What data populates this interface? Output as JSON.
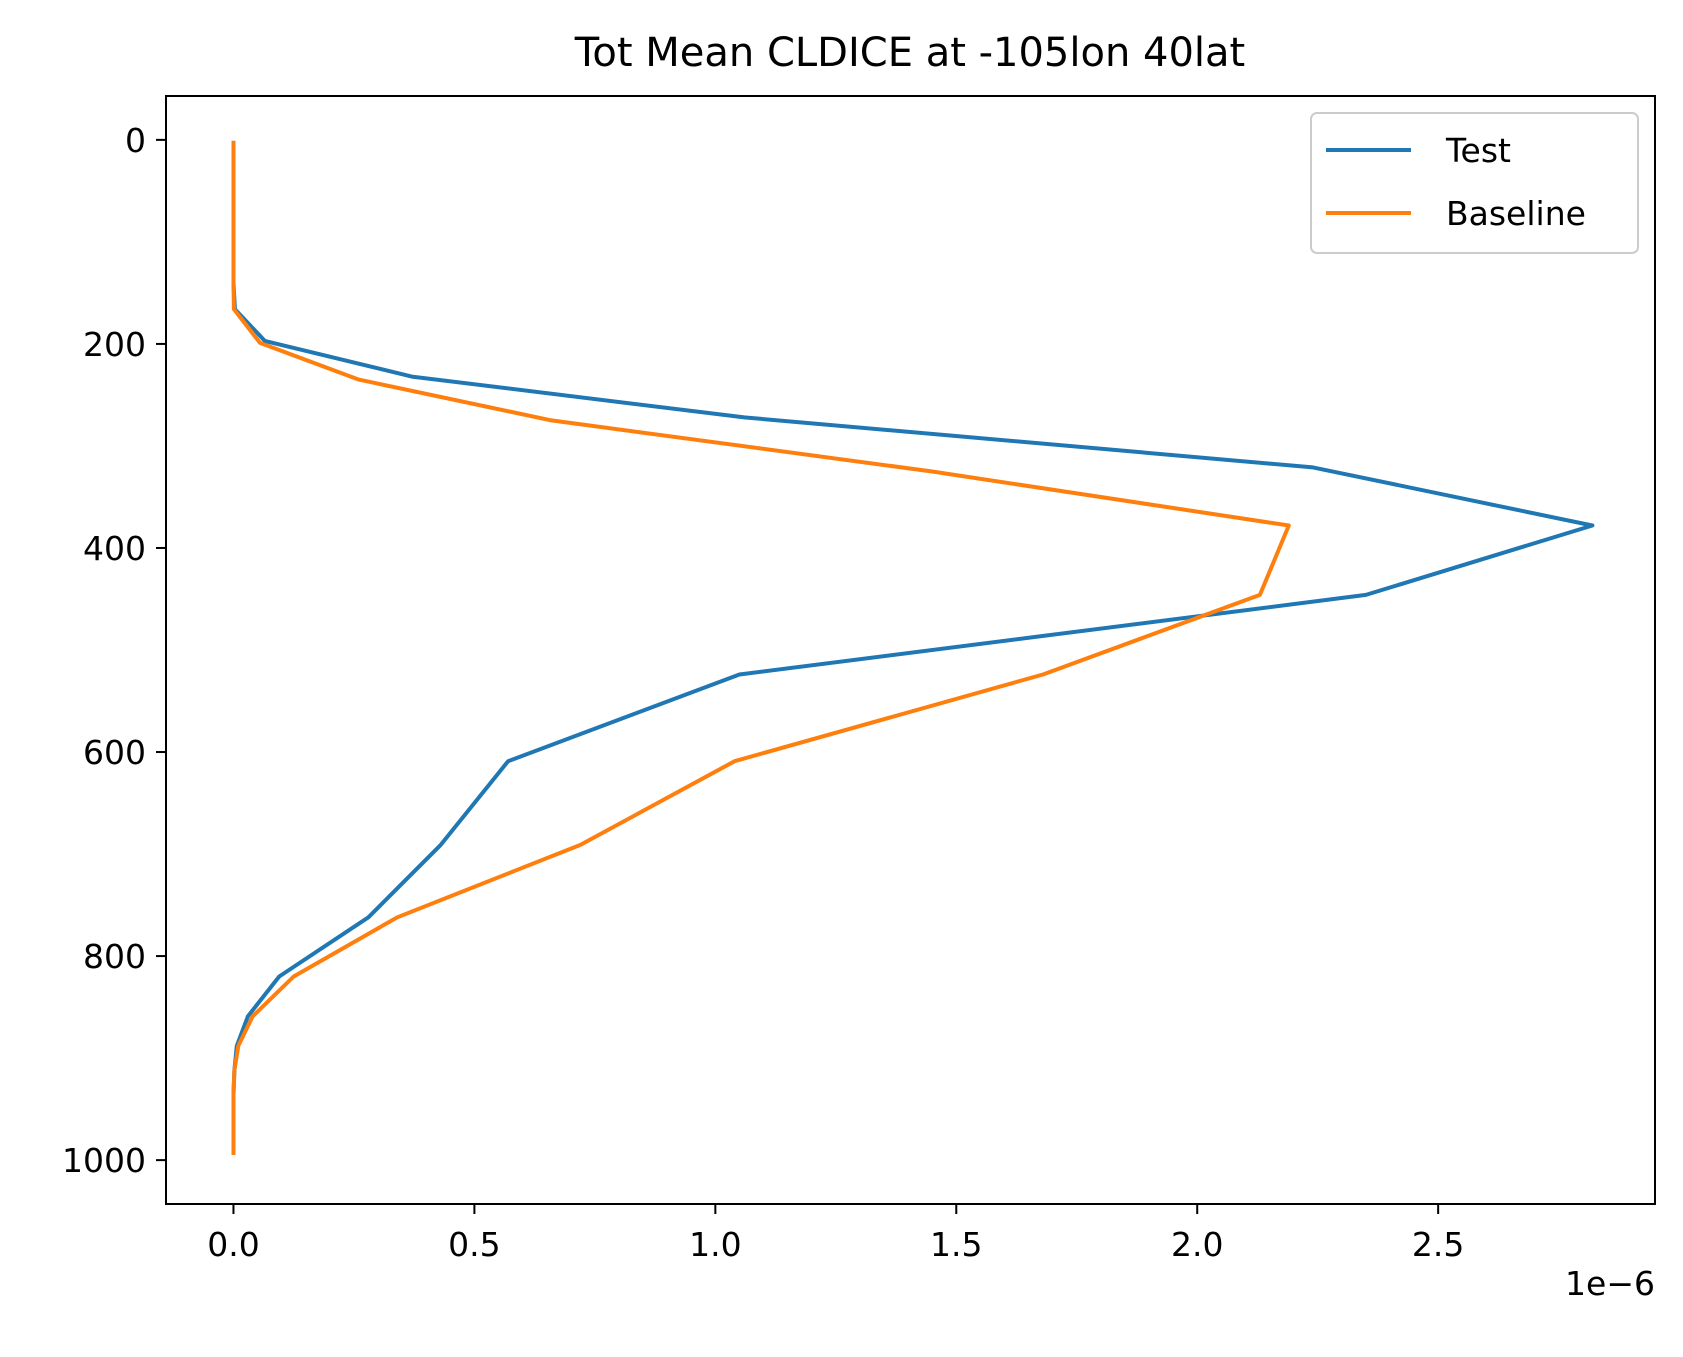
{
  "chart_data": {
    "type": "line",
    "title": "Tot Mean CLDICE at -105lon 40lat",
    "xlabel": "",
    "ylabel": "",
    "x_offset_label": "1e−6",
    "x_scale": 1e-06,
    "xlim": [
      -0.14,
      2.95
    ],
    "ylim": [
      -43,
      1043
    ],
    "y_inverted": true,
    "grid": false,
    "legend_position": "top-right",
    "x_ticks": [
      0.0,
      0.5,
      1.0,
      1.5,
      2.0,
      2.5
    ],
    "x_tick_labels": [
      "0.0",
      "0.5",
      "1.0",
      "1.5",
      "2.0",
      "2.5"
    ],
    "y_ticks": [
      0,
      200,
      400,
      600,
      800,
      1000
    ],
    "y_tick_labels": [
      "0",
      "200",
      "400",
      "600",
      "800",
      "1000"
    ],
    "series": [
      {
        "name": "Test",
        "color": "#1f77b4",
        "points": [
          [
            0.0,
            3
          ],
          [
            0.0,
            50
          ],
          [
            0.0,
            100
          ],
          [
            0.0,
            140
          ],
          [
            0.003,
            166
          ],
          [
            0.065,
            197
          ],
          [
            0.37,
            232
          ],
          [
            1.06,
            272
          ],
          [
            2.24,
            321
          ],
          [
            2.82,
            378
          ],
          [
            2.35,
            446
          ],
          [
            1.05,
            524
          ],
          [
            0.57,
            609
          ],
          [
            0.43,
            691
          ],
          [
            0.28,
            762
          ],
          [
            0.095,
            820
          ],
          [
            0.03,
            859
          ],
          [
            0.007,
            888
          ],
          [
            0.002,
            912
          ],
          [
            0.0,
            935
          ],
          [
            0.0,
            955
          ],
          [
            0.0,
            972
          ],
          [
            0.0,
            993
          ]
        ]
      },
      {
        "name": "Baseline",
        "color": "#ff7f0e",
        "points": [
          [
            0.0,
            3
          ],
          [
            0.0,
            50
          ],
          [
            0.0,
            100
          ],
          [
            0.0,
            140
          ],
          [
            0.001,
            166
          ],
          [
            0.055,
            199
          ],
          [
            0.26,
            235
          ],
          [
            0.66,
            275
          ],
          [
            1.45,
            325
          ],
          [
            2.19,
            378
          ],
          [
            2.13,
            446
          ],
          [
            1.68,
            524
          ],
          [
            1.04,
            609
          ],
          [
            0.72,
            691
          ],
          [
            0.34,
            762
          ],
          [
            0.125,
            820
          ],
          [
            0.04,
            859
          ],
          [
            0.01,
            888
          ],
          [
            0.002,
            912
          ],
          [
            0.0,
            935
          ],
          [
            0.0,
            955
          ],
          [
            0.0,
            972
          ],
          [
            0.0,
            993
          ]
        ]
      }
    ]
  }
}
